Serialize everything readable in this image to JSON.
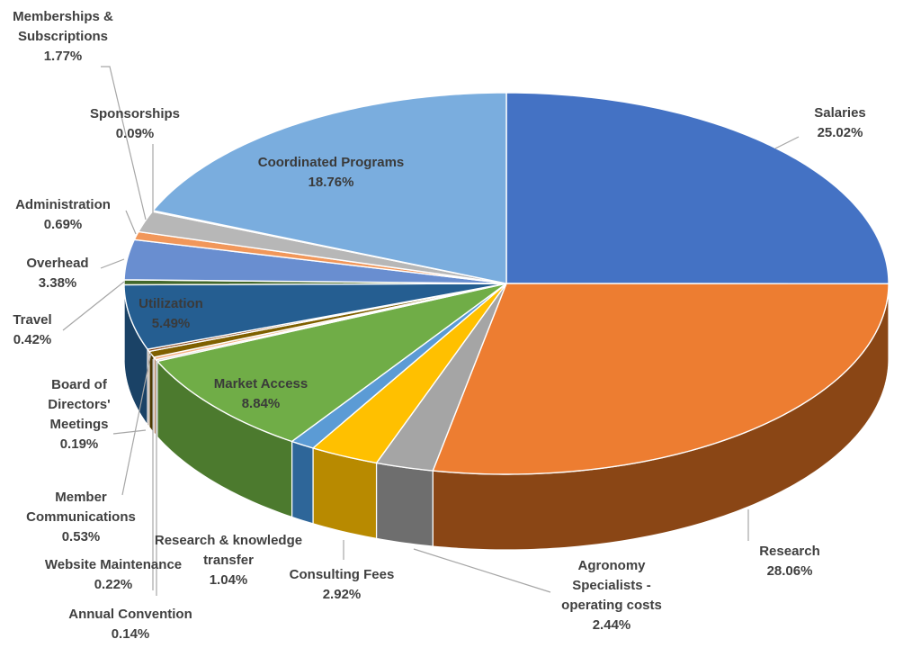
{
  "chart_data": {
    "type": "pie",
    "style": "3d",
    "title": "",
    "slices": [
      {
        "label": "Salaries",
        "value": 25.02,
        "display": "25.02%",
        "color": "#4472C4",
        "side": "#2F4F8A"
      },
      {
        "label": "Research",
        "value": 28.06,
        "display": "28.06%",
        "color": "#ED7D31",
        "side": "#8A4615"
      },
      {
        "label": "Agronomy Specialists - operating costs",
        "value": 2.44,
        "display": "2.44%",
        "color": "#A5A5A5",
        "side": "#6E6E6E"
      },
      {
        "label": "Consulting Fees",
        "value": 2.92,
        "display": "2.92%",
        "color": "#FFC000",
        "side": "#B88A00"
      },
      {
        "label": "Research & knowledge transfer",
        "value": 1.04,
        "display": "1.04%",
        "color": "#5B9BD5",
        "side": "#2E6699"
      },
      {
        "label": "Market Access",
        "value": 8.84,
        "display": "8.84%",
        "color": "#70AD47",
        "side": "#4C7A2E"
      },
      {
        "label": "Annual Convention",
        "value": 0.14,
        "display": "0.14%",
        "color": "#C9C9C9",
        "side": "#8A8A8A"
      },
      {
        "label": "Website Maintenance",
        "value": 0.22,
        "display": "0.22%",
        "color": "#F4B183",
        "side": "#A86A3E"
      },
      {
        "label": "Member Communications",
        "value": 0.53,
        "display": "0.53%",
        "color": "#7F6000",
        "side": "#4D3A00"
      },
      {
        "label": "Board of Directors' Meetings",
        "value": 0.19,
        "display": "0.19%",
        "color": "#843C0C",
        "side": "#4F2407"
      },
      {
        "label": "Utilization",
        "value": 5.49,
        "display": "5.49%",
        "color": "#255E91",
        "side": "#1A4266"
      },
      {
        "label": "Travel",
        "value": 0.42,
        "display": "0.42%",
        "color": "#43682B",
        "side": "#2B431C"
      },
      {
        "label": "Overhead",
        "value": 3.38,
        "display": "3.38%",
        "color": "#698ED0",
        "side": "#3F5E96"
      },
      {
        "label": "Administration",
        "value": 0.69,
        "display": "0.69%",
        "color": "#F1975A",
        "side": "#A25F2F"
      },
      {
        "label": "Memberships & Subscriptions",
        "value": 1.77,
        "display": "1.77%",
        "color": "#B7B7B7",
        "side": "#7F7F7F"
      },
      {
        "label": "Sponsorships",
        "value": 0.09,
        "display": "0.09%",
        "color": "#FFCD33",
        "side": "#B08C1F"
      },
      {
        "label": "Coordinated Programs",
        "value": 18.76,
        "display": "18.76%",
        "color": "#7AADDE",
        "side": "#4E82B5"
      }
    ]
  }
}
